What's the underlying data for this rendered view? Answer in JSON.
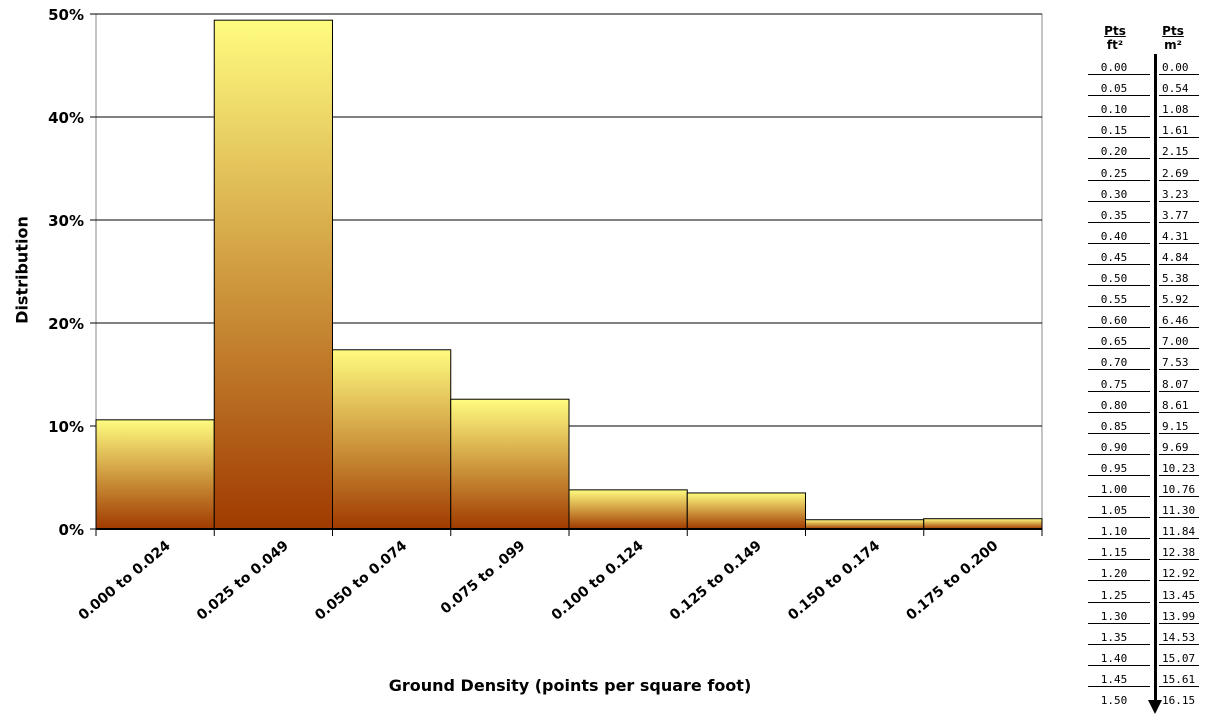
{
  "chart_data": {
    "type": "bar",
    "categories": [
      "0.000 to 0.024",
      "0.025 to 0.049",
      "0.050 to 0.074",
      "0.075 to .099",
      "0.100 to 0.124",
      "0.125 to 0.149",
      "0.150 to 0.174",
      "0.175 to 0.200"
    ],
    "values": [
      10.6,
      49.4,
      17.4,
      12.6,
      3.8,
      3.5,
      0.9,
      1.0
    ],
    "ylim": [
      0,
      50
    ],
    "yticks": [
      "0%",
      "10%",
      "20%",
      "30%",
      "40%",
      "50%"
    ],
    "xlabel": "Ground Density (points per square foot)",
    "ylabel": "Distribution",
    "grid": true,
    "colors": {
      "bar_top": "#FFFC80",
      "bar_bottom": "#A03A00",
      "grid": "#000000"
    }
  },
  "conversion": {
    "header_ft": "Pts",
    "header_ft_unit": "ft²",
    "header_m": "Pts",
    "header_m_unit": "m²",
    "rows": [
      [
        "0.00",
        "0.00"
      ],
      [
        "0.05",
        "0.54"
      ],
      [
        "0.10",
        "1.08"
      ],
      [
        "0.15",
        "1.61"
      ],
      [
        "0.20",
        "2.15"
      ],
      [
        "0.25",
        "2.69"
      ],
      [
        "0.30",
        "3.23"
      ],
      [
        "0.35",
        "3.77"
      ],
      [
        "0.40",
        "4.31"
      ],
      [
        "0.45",
        "4.84"
      ],
      [
        "0.50",
        "5.38"
      ],
      [
        "0.55",
        "5.92"
      ],
      [
        "0.60",
        "6.46"
      ],
      [
        "0.65",
        "7.00"
      ],
      [
        "0.70",
        "7.53"
      ],
      [
        "0.75",
        "8.07"
      ],
      [
        "0.80",
        "8.61"
      ],
      [
        "0.85",
        "9.15"
      ],
      [
        "0.90",
        "9.69"
      ],
      [
        "0.95",
        "10.23"
      ],
      [
        "1.00",
        "10.76"
      ],
      [
        "1.05",
        "11.30"
      ],
      [
        "1.10",
        "11.84"
      ],
      [
        "1.15",
        "12.38"
      ],
      [
        "1.20",
        "12.92"
      ],
      [
        "1.25",
        "13.45"
      ],
      [
        "1.30",
        "13.99"
      ],
      [
        "1.35",
        "14.53"
      ],
      [
        "1.40",
        "15.07"
      ],
      [
        "1.45",
        "15.61"
      ],
      [
        "1.50",
        "16.15"
      ]
    ]
  }
}
